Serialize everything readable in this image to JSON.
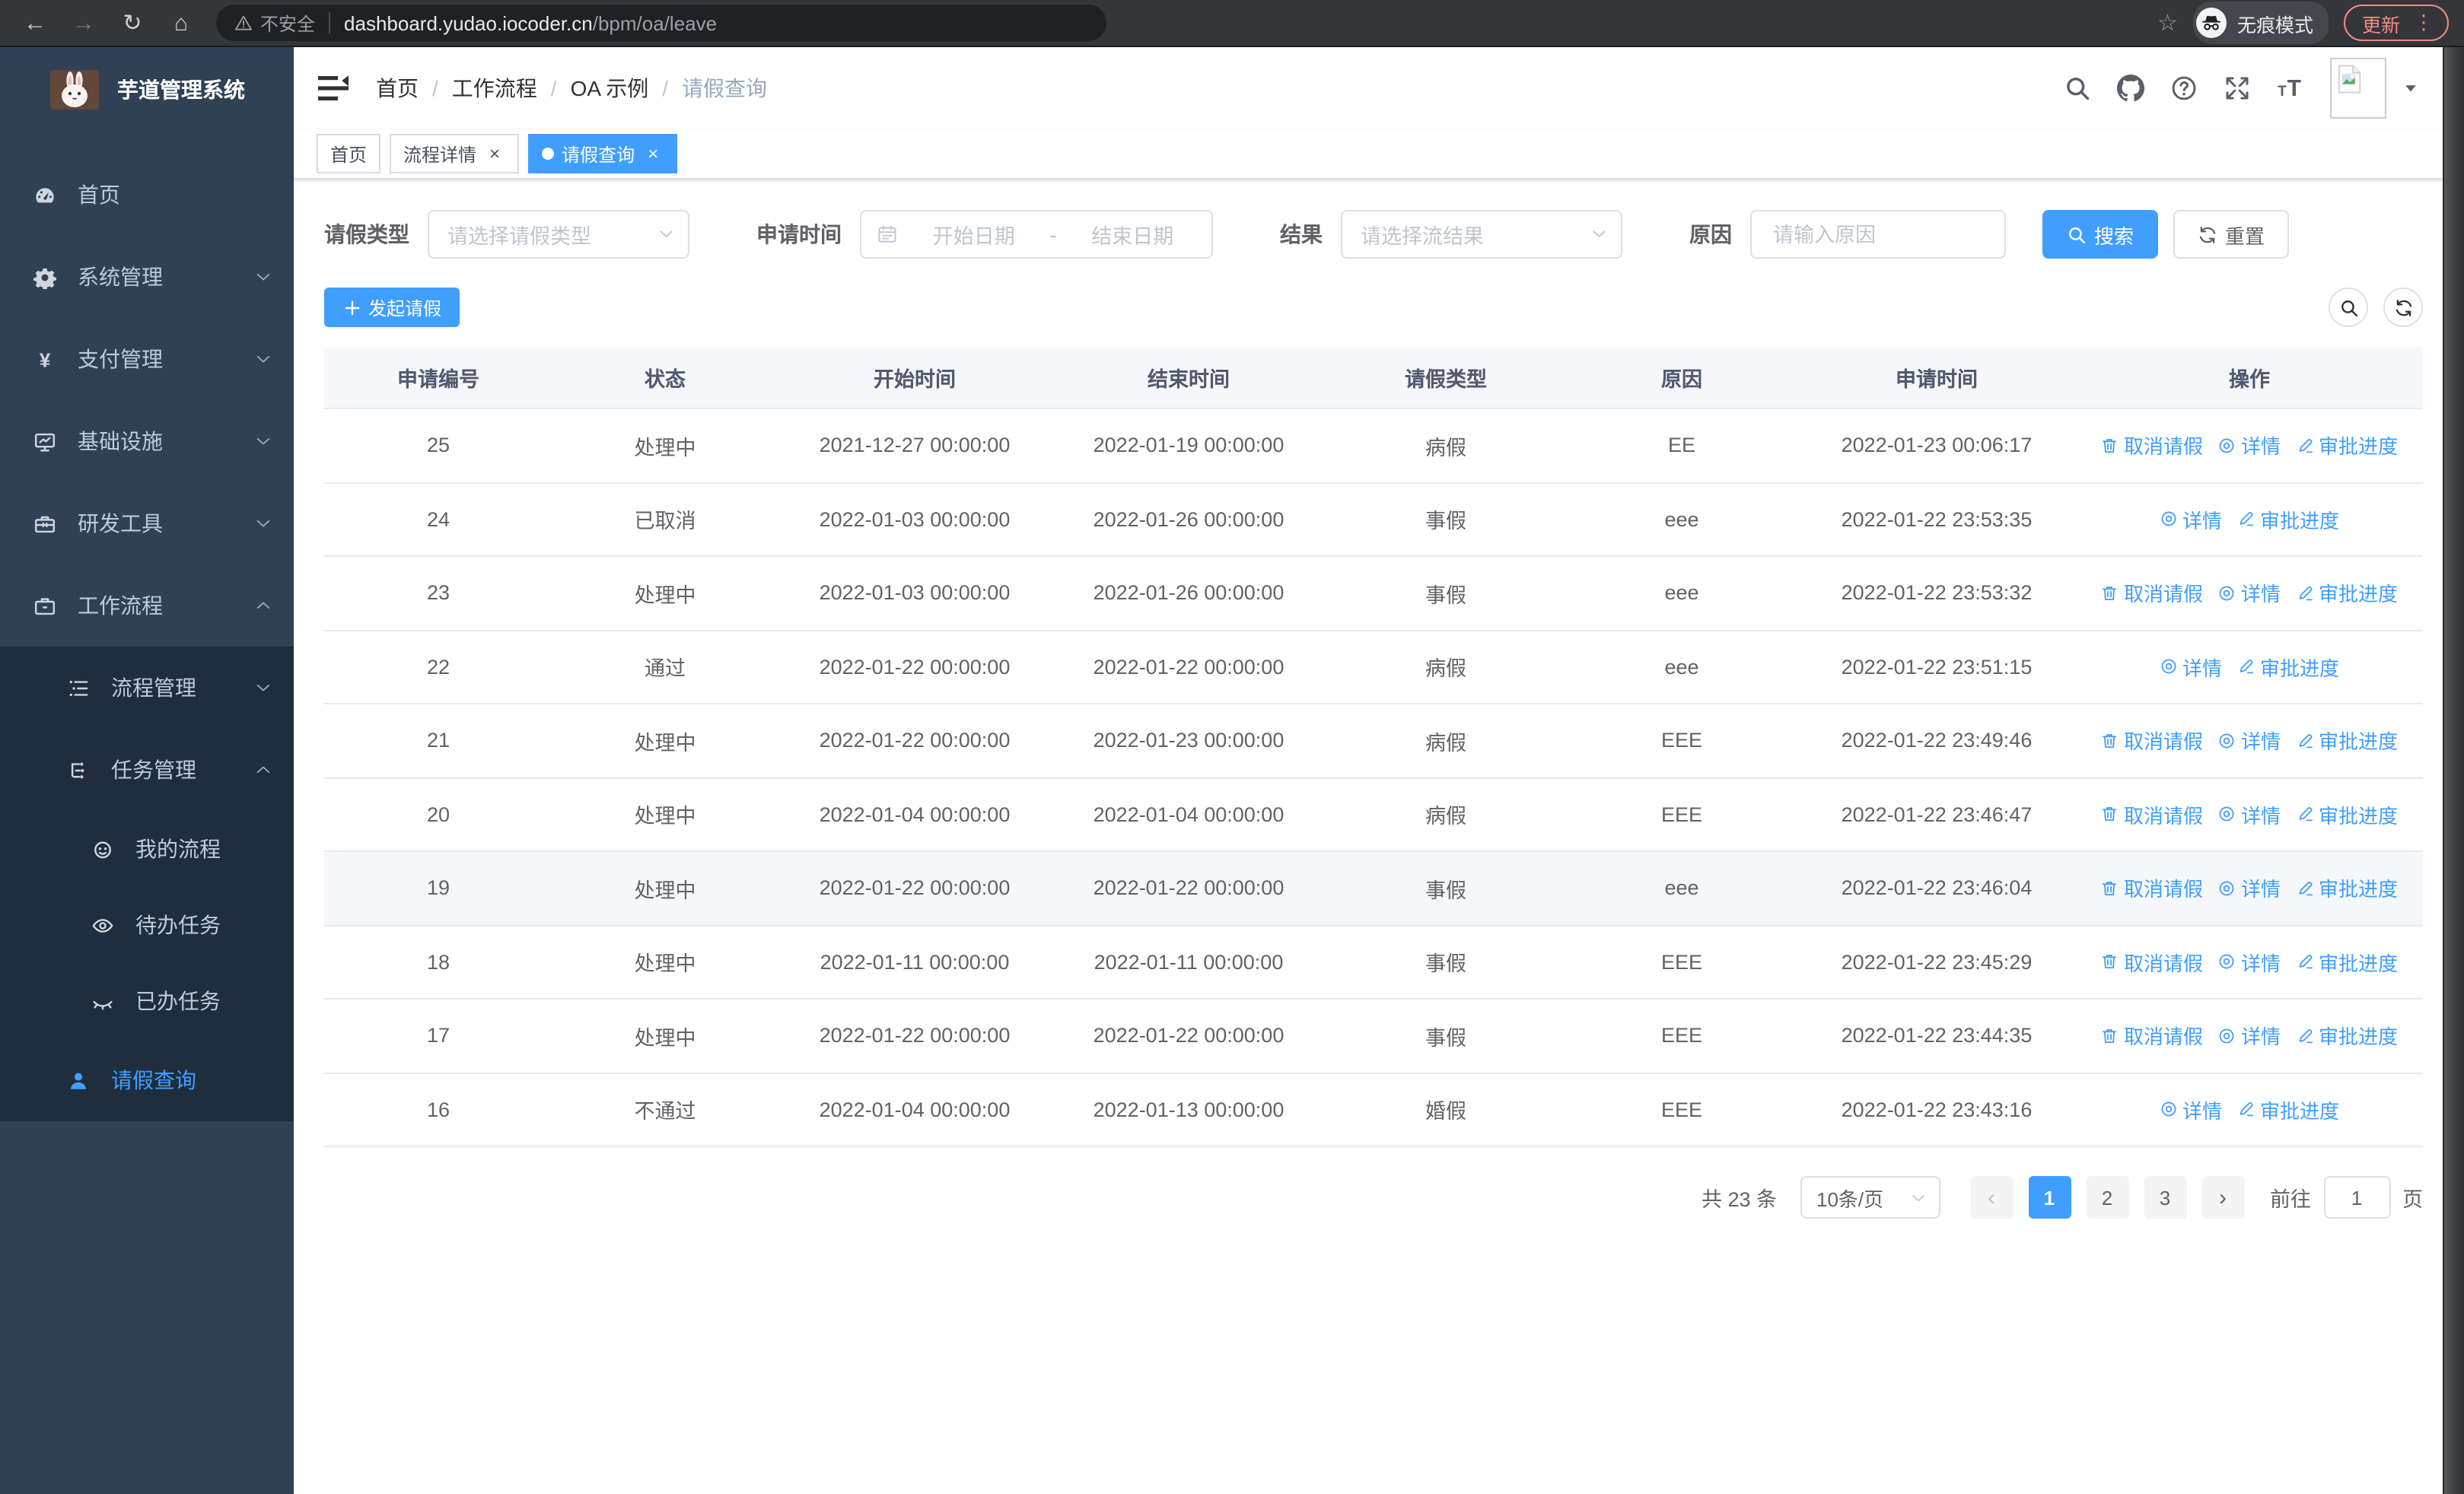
{
  "browser": {
    "security_label": "不安全",
    "url_host": "dashboard.yudao.iocoder.cn",
    "url_path": "/bpm/oa/leave",
    "incognito_label": "无痕模式",
    "update_label": "更新"
  },
  "sidebar": {
    "app_title": "芋道管理系统",
    "menu": [
      {
        "label": "首页",
        "icon": "dashboard-icon",
        "level": 1
      },
      {
        "label": "系统管理",
        "icon": "gear-icon",
        "level": 1,
        "chevron": "down"
      },
      {
        "label": "支付管理",
        "icon": "yen-icon",
        "level": 1,
        "chevron": "down"
      },
      {
        "label": "基础设施",
        "icon": "monitor-icon",
        "level": 1,
        "chevron": "down"
      },
      {
        "label": "研发工具",
        "icon": "toolbox-icon",
        "level": 1,
        "chevron": "down"
      },
      {
        "label": "工作流程",
        "icon": "briefcase-icon",
        "level": 1,
        "chevron": "up"
      },
      {
        "label": "流程管理",
        "icon": "list-tree-icon",
        "level": 2,
        "chevron": "down",
        "dark": true
      },
      {
        "label": "任务管理",
        "icon": "node-tree-icon",
        "level": 2,
        "chevron": "up",
        "dark": true
      },
      {
        "label": "我的流程",
        "icon": "robot-icon",
        "level": 3,
        "dark": true
      },
      {
        "label": "待办任务",
        "icon": "eye-open-icon",
        "level": 3,
        "dark": true
      },
      {
        "label": "已办任务",
        "icon": "eye-closed-icon",
        "level": 3,
        "dark": true
      },
      {
        "label": "请假查询",
        "icon": "user-icon",
        "level": 2,
        "dark": true,
        "active": true
      }
    ]
  },
  "header": {
    "breadcrumb": [
      "首页",
      "工作流程",
      "OA 示例",
      "请假查询"
    ],
    "separator": "/"
  },
  "tabs": [
    {
      "label": "首页",
      "closable": false,
      "active": false
    },
    {
      "label": "流程详情",
      "closable": true,
      "active": false
    },
    {
      "label": "请假查询",
      "closable": true,
      "active": true
    }
  ],
  "filters": {
    "leave_type_label": "请假类型",
    "leave_type_placeholder": "请选择请假类型",
    "apply_time_label": "申请时间",
    "start_date_placeholder": "开始日期",
    "range_separator": "-",
    "end_date_placeholder": "结束日期",
    "result_label": "结果",
    "result_placeholder": "请选择流结果",
    "reason_label": "原因",
    "reason_placeholder": "请输入原因",
    "search_label": "搜索",
    "reset_label": "重置"
  },
  "toolbar": {
    "create_label": "发起请假"
  },
  "table": {
    "columns": [
      "申请编号",
      "状态",
      "开始时间",
      "结束时间",
      "请假类型",
      "原因",
      "申请时间",
      "操作"
    ],
    "actions": {
      "cancel": "取消请假",
      "detail": "详情",
      "progress": "审批进度"
    },
    "rows": [
      {
        "id": "25",
        "status": "处理中",
        "start": "2021-12-27 00:00:00",
        "end": "2022-01-19 00:00:00",
        "type": "病假",
        "reason": "EE",
        "apply": "2022-01-23 00:06:17",
        "cancellable": true,
        "hover": false
      },
      {
        "id": "24",
        "status": "已取消",
        "start": "2022-01-03 00:00:00",
        "end": "2022-01-26 00:00:00",
        "type": "事假",
        "reason": "eee",
        "apply": "2022-01-22 23:53:35",
        "cancellable": false,
        "hover": false
      },
      {
        "id": "23",
        "status": "处理中",
        "start": "2022-01-03 00:00:00",
        "end": "2022-01-26 00:00:00",
        "type": "事假",
        "reason": "eee",
        "apply": "2022-01-22 23:53:32",
        "cancellable": true,
        "hover": false
      },
      {
        "id": "22",
        "status": "通过",
        "start": "2022-01-22 00:00:00",
        "end": "2022-01-22 00:00:00",
        "type": "病假",
        "reason": "eee",
        "apply": "2022-01-22 23:51:15",
        "cancellable": false,
        "hover": false
      },
      {
        "id": "21",
        "status": "处理中",
        "start": "2022-01-22 00:00:00",
        "end": "2022-01-23 00:00:00",
        "type": "病假",
        "reason": "EEE",
        "apply": "2022-01-22 23:49:46",
        "cancellable": true,
        "hover": false
      },
      {
        "id": "20",
        "status": "处理中",
        "start": "2022-01-04 00:00:00",
        "end": "2022-01-04 00:00:00",
        "type": "病假",
        "reason": "EEE",
        "apply": "2022-01-22 23:46:47",
        "cancellable": true,
        "hover": false
      },
      {
        "id": "19",
        "status": "处理中",
        "start": "2022-01-22 00:00:00",
        "end": "2022-01-22 00:00:00",
        "type": "事假",
        "reason": "eee",
        "apply": "2022-01-22 23:46:04",
        "cancellable": true,
        "hover": true
      },
      {
        "id": "18",
        "status": "处理中",
        "start": "2022-01-11 00:00:00",
        "end": "2022-01-11 00:00:00",
        "type": "事假",
        "reason": "EEE",
        "apply": "2022-01-22 23:45:29",
        "cancellable": true,
        "hover": false
      },
      {
        "id": "17",
        "status": "处理中",
        "start": "2022-01-22 00:00:00",
        "end": "2022-01-22 00:00:00",
        "type": "事假",
        "reason": "EEE",
        "apply": "2022-01-22 23:44:35",
        "cancellable": true,
        "hover": false
      },
      {
        "id": "16",
        "status": "不通过",
        "start": "2022-01-04 00:00:00",
        "end": "2022-01-13 00:00:00",
        "type": "婚假",
        "reason": "EEE",
        "apply": "2022-01-22 23:43:16",
        "cancellable": false,
        "hover": false
      }
    ]
  },
  "pagination": {
    "total_label": "共 23 条",
    "page_size_label": "10条/页",
    "pages": [
      "1",
      "2",
      "3"
    ],
    "active_page": "1",
    "goto_label": "前往",
    "goto_value": "1",
    "page_unit": "页"
  },
  "colors": {
    "accent": "#409eff",
    "sidebar_bg": "#304156",
    "submenu_bg": "#1f2d3d",
    "update_chip": "#f28b82"
  }
}
